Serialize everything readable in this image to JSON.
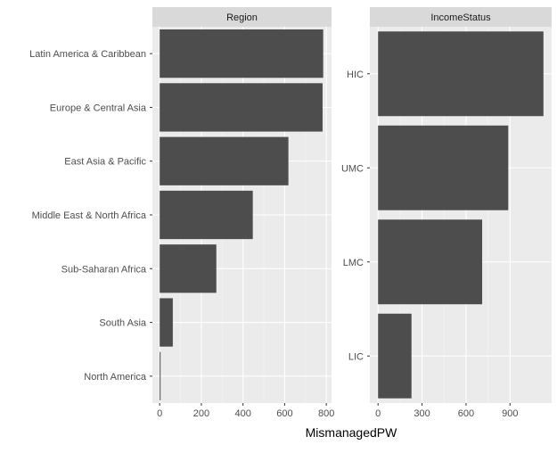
{
  "chart_data": [
    {
      "type": "bar",
      "orientation": "horizontal",
      "panel": "Region",
      "categories": [
        "Latin America & Caribbean",
        "Europe & Central Asia",
        "East Asia & Pacific",
        "Middle East & North Africa",
        "Sub-Saharan Africa",
        "South Asia",
        "North America"
      ],
      "values": [
        785,
        782,
        618,
        447,
        272,
        63,
        3
      ],
      "xlim": [
        -35,
        825
      ],
      "xticks": [
        0,
        200,
        400,
        600,
        800
      ],
      "xtick_labels": [
        "0",
        "200",
        "400",
        "600",
        "800"
      ],
      "grid": true
    },
    {
      "type": "bar",
      "orientation": "horizontal",
      "panel": "IncomeStatus",
      "categories": [
        "HIC",
        "UMC",
        "LMC",
        "LIC"
      ],
      "values": [
        1128,
        888,
        710,
        228
      ],
      "xlim": [
        -56,
        1184
      ],
      "xticks": [
        0,
        300,
        600,
        900
      ],
      "xtick_labels": [
        "0",
        "300",
        "600",
        "900"
      ],
      "grid": true
    }
  ],
  "xlabel": "MismanagedPW",
  "colors": {
    "bar": "#4d4d4d",
    "panel_bg": "#ebebeb",
    "strip_bg": "#d9d9d9",
    "grid_major": "#ffffff",
    "grid_minor": "#f5f5f5"
  }
}
